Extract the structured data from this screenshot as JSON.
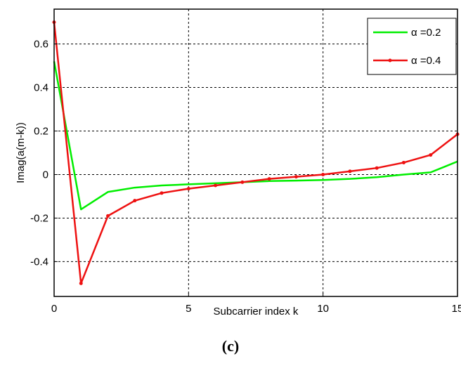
{
  "caption": "(c)",
  "chart_data": {
    "type": "line",
    "xlabel": "Subcarrier index k",
    "ylabel": "Imag(a(m-k))",
    "xlim": [
      0,
      15
    ],
    "ylim": [
      -0.56,
      0.76
    ],
    "x_ticks": [
      0,
      5,
      10,
      15
    ],
    "y_ticks": [
      -0.4,
      -0.2,
      0,
      0.2,
      0.4,
      0.6
    ],
    "grid": true,
    "legend_position": "top-right",
    "x": [
      0,
      1,
      2,
      3,
      4,
      5,
      6,
      7,
      8,
      9,
      10,
      11,
      12,
      13,
      14,
      15
    ],
    "series": [
      {
        "name": "α =0.2",
        "color": "#00ee00",
        "marker": "none",
        "values": [
          0.52,
          -0.16,
          -0.08,
          -0.06,
          -0.05,
          -0.045,
          -0.04,
          -0.035,
          -0.03,
          -0.028,
          -0.025,
          -0.02,
          -0.012,
          0.0,
          0.01,
          0.06
        ]
      },
      {
        "name": "α =0.4",
        "color": "#ee1111",
        "marker": "dot",
        "values": [
          0.7,
          -0.5,
          -0.19,
          -0.12,
          -0.085,
          -0.065,
          -0.05,
          -0.035,
          -0.02,
          -0.01,
          0.0,
          0.015,
          0.03,
          0.055,
          0.09,
          0.185
        ]
      }
    ]
  }
}
